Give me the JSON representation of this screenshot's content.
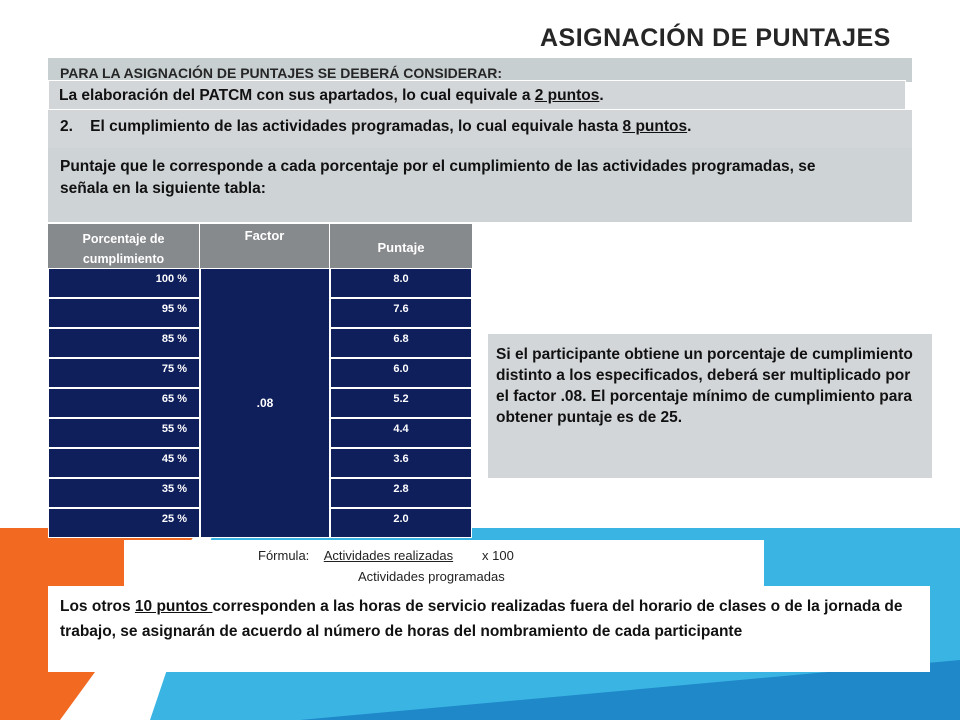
{
  "title": "ASIGNACIÓN DE PUNTAJES",
  "intro": "PARA LA ASIGNACIÓN DE PUNTAJES SE DEBERÁ CONSIDERAR:",
  "item1": {
    "before": "La elaboración del PATCM con sus apartados, lo cual equivale a ",
    "highlight": "2 puntos",
    "after": "."
  },
  "item2": {
    "number": "2.",
    "before": "El cumplimiento de las actividades programadas, lo cual equivale hasta ",
    "highlight": "8 puntos",
    "after": "."
  },
  "table_intro": "Puntaje que le corresponde a cada porcentaje por el cumplimiento de las actividades programadas, se señala en la siguiente tabla:",
  "table": {
    "headers": {
      "percent": "Porcentaje de cumplimiento",
      "factor": "Factor",
      "score": "Puntaje"
    },
    "factor": ".08",
    "rows": [
      {
        "percent": "100 %",
        "score": "8.0"
      },
      {
        "percent": "95 %",
        "score": "7.6"
      },
      {
        "percent": "85 %",
        "score": "6.8"
      },
      {
        "percent": "75 %",
        "score": "6.0"
      },
      {
        "percent": "65 %",
        "score": "5.2"
      },
      {
        "percent": "55 %",
        "score": "4.4"
      },
      {
        "percent": "45 %",
        "score": "3.6"
      },
      {
        "percent": "35 %",
        "score": "2.8"
      },
      {
        "percent": "25 %",
        "score": "2.0"
      }
    ]
  },
  "note": "Si el participante obtiene un porcentaje de cumplimiento distinto a los especificados, deberá ser multiplicado por el factor .08. El porcentaje mínimo de cumplimiento para obtener puntaje es de 25.",
  "formula": {
    "label": "Fórmula:",
    "numerator": "Actividades realizadas",
    "multiplier": "x 100",
    "denominator": "Actividades programadas"
  },
  "bottom": {
    "before": "Los otros ",
    "highlight": "10 puntos ",
    "after": "corresponden a las horas de servicio realizadas fuera del horario de clases o de la jornada de trabajo, se asignarán de acuerdo al número de horas del nombramiento de cada participante"
  },
  "colors": {
    "orange": "#f26a21",
    "blue": "#3ab4e2",
    "table_navy": "#0f1f5c",
    "table_header": "#878a8d",
    "panel_gray": "#d3d6d9"
  }
}
